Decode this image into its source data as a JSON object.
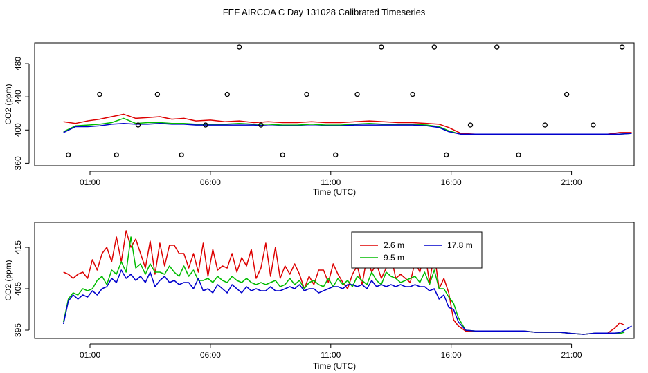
{
  "title": "FEF AIRCOA C  Day 131028  Calibrated Timeseries",
  "chart_data": [
    {
      "type": "scatter",
      "xlabel": "Time (UTC)",
      "ylabel": "CO2 (ppm)",
      "xlim": [
        -1.3,
        23.6
      ],
      "ylim": [
        357,
        505
      ],
      "xticks": [
        1,
        6,
        11,
        16,
        21
      ],
      "xtick_labels": [
        "01:00",
        "06:00",
        "11:00",
        "16:00",
        "21:00"
      ],
      "yticks": [
        360,
        400,
        440,
        480
      ],
      "ytick_labels": [
        "360",
        "400",
        "440",
        "480"
      ],
      "series": [
        {
          "color": "#dd0000",
          "x": [
            -0.1,
            0.4,
            0.9,
            1.4,
            1.9,
            2.4,
            2.9,
            3.4,
            3.9,
            4.4,
            4.9,
            5.4,
            6.0,
            6.6,
            7.2,
            7.8,
            8.4,
            9.0,
            9.6,
            10.2,
            10.8,
            11.4,
            12.0,
            12.6,
            13.2,
            13.8,
            14.4,
            15.0,
            15.5,
            15.9,
            16.4,
            17.0,
            18.0,
            19.0,
            20.0,
            21.0,
            22.0,
            22.5,
            23.0,
            23.5
          ],
          "y": [
            410,
            408,
            411,
            413,
            416,
            419,
            414,
            415,
            416,
            413,
            414,
            411,
            412,
            410,
            411,
            409,
            410,
            409,
            409,
            410,
            409,
            409,
            410,
            411,
            410,
            409,
            409,
            408,
            407,
            403,
            396,
            395,
            395,
            395,
            395,
            395,
            395,
            395,
            397,
            397
          ]
        },
        {
          "color": "#00bb00",
          "x": [
            -0.1,
            0.4,
            0.9,
            1.4,
            1.9,
            2.4,
            2.9,
            3.4,
            3.9,
            4.4,
            4.9,
            5.4,
            6.0,
            6.6,
            7.2,
            7.8,
            8.4,
            9.0,
            9.6,
            10.2,
            10.8,
            11.4,
            12.0,
            12.6,
            13.2,
            13.8,
            14.4,
            15.0,
            15.5,
            15.9,
            16.4,
            17.0,
            18.0,
            19.0,
            20.0,
            21.0,
            22.0,
            22.5,
            23.0,
            23.5
          ],
          "y": [
            398,
            405,
            406,
            407,
            409,
            414,
            408,
            409,
            409,
            408,
            408,
            407,
            407,
            407,
            408,
            407,
            407,
            406,
            406,
            407,
            406,
            406,
            407,
            408,
            407,
            407,
            407,
            406,
            404,
            399,
            395,
            395,
            395,
            395,
            395,
            395,
            395,
            395,
            395,
            396
          ]
        },
        {
          "color": "#0000cc",
          "x": [
            -0.1,
            0.4,
            0.9,
            1.4,
            1.9,
            2.4,
            2.9,
            3.4,
            3.9,
            4.4,
            4.9,
            5.4,
            6.0,
            6.6,
            7.2,
            7.8,
            8.4,
            9.0,
            9.6,
            10.2,
            10.8,
            11.4,
            12.0,
            12.6,
            13.2,
            13.8,
            14.4,
            15.0,
            15.5,
            15.9,
            16.4,
            17.0,
            18.0,
            19.0,
            20.0,
            21.0,
            22.0,
            22.5,
            23.0,
            23.5
          ],
          "y": [
            397,
            404,
            404,
            405,
            407,
            408,
            407,
            407,
            408,
            407,
            407,
            406,
            406,
            406,
            406,
            406,
            405,
            405,
            405,
            405,
            405,
            405,
            406,
            406,
            406,
            406,
            406,
            405,
            403,
            398,
            395,
            395,
            395,
            395,
            395,
            395,
            395,
            395,
            395,
            396
          ]
        },
        {
          "color": "#000000",
          "marker": "circle",
          "x": [
            0.1,
            1.4,
            2.1,
            3.0,
            3.8,
            4.8,
            5.8,
            6.7,
            7.2,
            8.1,
            9.0,
            10.0,
            11.2,
            12.1,
            13.1,
            14.4,
            15.3,
            15.8,
            16.8,
            17.9,
            18.8,
            19.9,
            20.8,
            21.9,
            23.1
          ],
          "y": [
            370,
            443,
            370,
            406,
            443,
            370,
            406,
            443,
            500,
            406,
            370,
            443,
            370,
            443,
            500,
            443,
            500,
            370,
            406,
            500,
            370,
            406,
            443,
            406,
            500
          ]
        }
      ]
    },
    {
      "type": "line",
      "xlabel": "Time (UTC)",
      "ylabel": "CO2 (ppm)",
      "xlim": [
        -1.3,
        23.6
      ],
      "ylim": [
        393,
        421
      ],
      "xticks": [
        1,
        6,
        11,
        16,
        21
      ],
      "xtick_labels": [
        "01:00",
        "06:00",
        "11:00",
        "16:00",
        "21:00"
      ],
      "yticks": [
        395,
        405,
        415
      ],
      "ytick_labels": [
        "395",
        "405",
        "415"
      ],
      "legend": "top-center",
      "series": [
        {
          "name": "2.6 m",
          "color": "#dd0000",
          "x": [
            -0.1,
            0.1,
            0.3,
            0.5,
            0.7,
            0.9,
            1.1,
            1.3,
            1.5,
            1.7,
            1.9,
            2.1,
            2.3,
            2.5,
            2.7,
            2.9,
            3.1,
            3.3,
            3.5,
            3.7,
            3.9,
            4.1,
            4.3,
            4.5,
            4.7,
            4.9,
            5.1,
            5.3,
            5.5,
            5.7,
            5.9,
            6.1,
            6.3,
            6.5,
            6.7,
            6.9,
            7.1,
            7.3,
            7.5,
            7.7,
            7.9,
            8.1,
            8.3,
            8.5,
            8.7,
            8.9,
            9.1,
            9.3,
            9.5,
            9.7,
            9.9,
            10.1,
            10.3,
            10.5,
            10.7,
            10.9,
            11.1,
            11.3,
            11.5,
            11.7,
            11.9,
            12.1,
            12.3,
            12.5,
            12.7,
            12.9,
            13.1,
            13.3,
            13.5,
            13.7,
            13.9,
            14.1,
            14.3,
            14.5,
            14.7,
            14.9,
            15.1,
            15.3,
            15.5,
            15.7,
            15.9,
            16.1,
            16.3,
            16.6,
            17.0,
            17.5,
            18.0,
            18.5,
            19.0,
            19.5,
            20.0,
            20.5,
            21.0,
            21.5,
            22.0,
            22.5,
            22.8,
            23.0,
            23.2
          ],
          "y": [
            409,
            408.5,
            407.5,
            408.5,
            409,
            407.5,
            412,
            409.5,
            413.5,
            415,
            411.5,
            417.5,
            411.5,
            419,
            415,
            417,
            413.5,
            410,
            416.5,
            408.5,
            416,
            410.5,
            415.5,
            415.5,
            413.5,
            413.5,
            410,
            413.5,
            409,
            416,
            408,
            414.5,
            409.5,
            410.5,
            410,
            413.5,
            409,
            412.5,
            410.5,
            414.5,
            407.5,
            410,
            416,
            408,
            415,
            407.5,
            410.5,
            408.5,
            411,
            408.5,
            405,
            408,
            406,
            409.5,
            409.5,
            406.5,
            411,
            408.5,
            406.5,
            405,
            408.5,
            410.5,
            406,
            412.5,
            409,
            411,
            407.5,
            410,
            413,
            407.5,
            408.5,
            407.5,
            406.5,
            411.5,
            409,
            414,
            406.5,
            413.5,
            405,
            407.5,
            404,
            397.5,
            396,
            394.8,
            394.8,
            394.8,
            394.8,
            394.8,
            394.8,
            394.5,
            394.5,
            394.5,
            394.2,
            394,
            394.3,
            394.3,
            395.5,
            396.8,
            396.2
          ]
        },
        {
          "name": "9.5 m",
          "color": "#00bb00",
          "x": [
            -0.1,
            0.1,
            0.3,
            0.5,
            0.7,
            0.9,
            1.1,
            1.3,
            1.5,
            1.7,
            1.9,
            2.1,
            2.3,
            2.5,
            2.7,
            2.9,
            3.1,
            3.3,
            3.5,
            3.7,
            3.9,
            4.1,
            4.3,
            4.5,
            4.7,
            4.9,
            5.1,
            5.3,
            5.5,
            5.7,
            5.9,
            6.1,
            6.3,
            6.5,
            6.7,
            6.9,
            7.1,
            7.3,
            7.5,
            7.7,
            7.9,
            8.1,
            8.3,
            8.5,
            8.7,
            8.9,
            9.1,
            9.3,
            9.5,
            9.7,
            9.9,
            10.1,
            10.3,
            10.5,
            10.7,
            10.9,
            11.1,
            11.3,
            11.5,
            11.7,
            11.9,
            12.1,
            12.3,
            12.5,
            12.7,
            12.9,
            13.1,
            13.3,
            13.5,
            13.7,
            13.9,
            14.1,
            14.3,
            14.5,
            14.7,
            14.9,
            15.1,
            15.3,
            15.5,
            15.7,
            15.9,
            16.1,
            16.3,
            16.6,
            17.0,
            17.5,
            18.0,
            18.5,
            19.0,
            19.5,
            20.0,
            20.5,
            21.0,
            21.5,
            22.0,
            22.5,
            22.8,
            23.0,
            23.2
          ],
          "y": [
            397,
            402.5,
            404,
            403.5,
            405,
            404.5,
            405,
            407,
            408,
            406,
            409.5,
            408.5,
            411.5,
            409,
            417.5,
            410,
            411,
            408.5,
            411,
            409,
            409,
            408.5,
            410.5,
            409,
            408,
            410.5,
            408,
            409.5,
            407,
            407,
            407.5,
            406.5,
            408,
            407,
            406.5,
            408,
            407,
            406.5,
            407.5,
            406.5,
            406,
            406.5,
            406,
            406.5,
            407,
            405.5,
            406,
            407.5,
            406,
            407,
            405,
            406.5,
            407,
            406,
            405.5,
            407.5,
            405.5,
            407.5,
            406,
            407,
            405.5,
            408,
            407,
            406,
            409,
            407,
            406,
            409,
            408,
            407.5,
            406.5,
            407,
            407.5,
            408,
            406.5,
            409,
            406,
            409.5,
            405,
            405,
            403,
            401.5,
            398,
            395,
            394.8,
            394.8,
            394.8,
            394.8,
            394.8,
            394.5,
            394.5,
            394.5,
            394.2,
            394,
            394.3,
            394.2,
            394.3,
            394.2,
            394.5
          ]
        },
        {
          "name": "17.8 m",
          "color": "#0000cc",
          "x": [
            -0.1,
            0.1,
            0.3,
            0.5,
            0.7,
            0.9,
            1.1,
            1.3,
            1.5,
            1.7,
            1.9,
            2.1,
            2.3,
            2.5,
            2.7,
            2.9,
            3.1,
            3.3,
            3.5,
            3.7,
            3.9,
            4.1,
            4.3,
            4.5,
            4.7,
            4.9,
            5.1,
            5.3,
            5.5,
            5.7,
            5.9,
            6.1,
            6.3,
            6.5,
            6.7,
            6.9,
            7.1,
            7.3,
            7.5,
            7.7,
            7.9,
            8.1,
            8.3,
            8.5,
            8.7,
            8.9,
            9.1,
            9.3,
            9.5,
            9.7,
            9.9,
            10.1,
            10.3,
            10.5,
            10.7,
            10.9,
            11.1,
            11.3,
            11.5,
            11.7,
            11.9,
            12.1,
            12.3,
            12.5,
            12.7,
            12.9,
            13.1,
            13.3,
            13.5,
            13.7,
            13.9,
            14.1,
            14.3,
            14.5,
            14.7,
            14.9,
            15.1,
            15.3,
            15.5,
            15.7,
            15.9,
            16.1,
            16.3,
            16.6,
            17.0,
            17.5,
            18.0,
            18.5,
            19.0,
            19.5,
            20.0,
            20.5,
            21.0,
            21.5,
            22.0,
            22.5,
            22.8,
            23.0,
            23.2,
            23.5
          ],
          "y": [
            396.5,
            402,
            403.5,
            402.5,
            403.5,
            403,
            404.5,
            403.5,
            405,
            405.5,
            407.5,
            406.5,
            409.5,
            407.5,
            408.5,
            407,
            408,
            406.5,
            409,
            405.5,
            407,
            408,
            406.5,
            407,
            406,
            406.5,
            406.5,
            405,
            407.5,
            404.5,
            405,
            404,
            406,
            405,
            404,
            406,
            405,
            404,
            405.5,
            404.5,
            405,
            404.5,
            404.5,
            405.5,
            404.5,
            404.5,
            405,
            405.5,
            405,
            406,
            404.5,
            405,
            405,
            404,
            404.5,
            405,
            405.5,
            405.5,
            405,
            406,
            406,
            405.5,
            406,
            405,
            407,
            405.5,
            406,
            405.5,
            406,
            405.5,
            406,
            405.5,
            405.5,
            406,
            405.5,
            405.5,
            404.5,
            405,
            402.5,
            403.5,
            400.5,
            400,
            397,
            395,
            394.8,
            394.8,
            394.8,
            394.8,
            394.8,
            394.5,
            394.5,
            394.5,
            394.2,
            394,
            394.3,
            394.3,
            394.3,
            394.4,
            395,
            396
          ]
        }
      ]
    }
  ]
}
